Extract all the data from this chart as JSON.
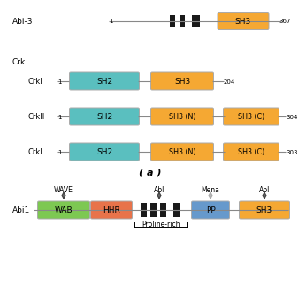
{
  "bg_color": "#ffffff",
  "sh2_color": "#5abfbf",
  "sh3_color": "#f5a833",
  "wab_color": "#7dc852",
  "hhr_color": "#e8734a",
  "pp_color": "#6699cc",
  "black_color": "#1a1a1a",
  "line_color": "#888888",
  "abi3_label": "Abi-3",
  "abi3_end": "367",
  "crk_label": "Crk",
  "crkI_label": "CrkI",
  "crkI_end": "204",
  "crkII_label": "CrkII",
  "crkII_end": "304",
  "crkL_label": "CrkL",
  "crkL_end": "303",
  "a_label": "( a )",
  "abi1_label": "Abi1",
  "proline_rich_label": "Proline-rich",
  "wave_label": "WAVE",
  "abl1_label": "Abl",
  "mena_label": "Mena",
  "abl2_label": "Abl"
}
